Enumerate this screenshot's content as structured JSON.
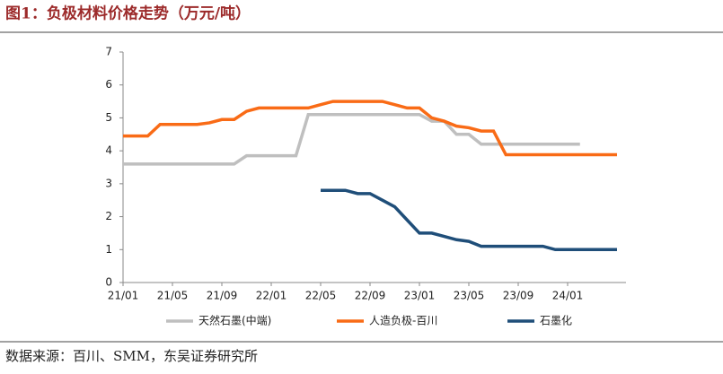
{
  "title": "图1：负极材料价格走势（万元/吨）",
  "source": "数据来源：百川、SMM，东吴证券研究所",
  "chart_data": {
    "type": "line",
    "categories": [
      "21/01",
      null,
      null,
      null,
      "21/05",
      null,
      null,
      null,
      "21/09",
      null,
      null,
      null,
      "22/01",
      null,
      null,
      null,
      "22/05",
      null,
      null,
      null,
      "22/09",
      null,
      null,
      null,
      "23/01",
      null,
      null,
      null,
      "23/05",
      null,
      null,
      null,
      "23/09",
      null,
      null,
      null,
      "24/01",
      null,
      null,
      null,
      null
    ],
    "series": [
      {
        "name": "天然石墨(中端)",
        "color": "#bfbfbf",
        "values": [
          3.6,
          3.6,
          3.6,
          3.6,
          3.6,
          3.6,
          3.6,
          3.6,
          3.6,
          3.6,
          3.85,
          3.85,
          3.85,
          3.85,
          3.85,
          5.1,
          5.1,
          5.1,
          5.1,
          5.1,
          5.1,
          5.1,
          5.1,
          5.1,
          5.1,
          4.9,
          4.9,
          4.5,
          4.5,
          4.2,
          4.2,
          4.2,
          4.2,
          4.2,
          4.2,
          4.2,
          4.2,
          4.2,
          null,
          null,
          null
        ]
      },
      {
        "name": "人造负极-百川",
        "color": "#f96b16",
        "values": [
          4.45,
          4.45,
          4.45,
          4.8,
          4.8,
          4.8,
          4.8,
          4.85,
          4.95,
          4.95,
          5.2,
          5.3,
          5.3,
          5.3,
          5.3,
          5.3,
          5.4,
          5.5,
          5.5,
          5.5,
          5.5,
          5.5,
          5.4,
          5.3,
          5.3,
          5.0,
          4.9,
          4.75,
          4.7,
          4.6,
          4.6,
          3.88,
          3.88,
          3.88,
          3.88,
          3.88,
          3.88,
          3.88,
          3.88,
          3.88,
          3.88
        ]
      },
      {
        "name": "石墨化",
        "color": "#1f4e79",
        "values": [
          null,
          null,
          null,
          null,
          null,
          null,
          null,
          null,
          null,
          null,
          null,
          null,
          null,
          null,
          null,
          null,
          2.8,
          2.8,
          2.8,
          2.7,
          2.7,
          2.5,
          2.3,
          1.9,
          1.5,
          1.5,
          1.4,
          1.3,
          1.25,
          1.1,
          1.1,
          1.1,
          1.1,
          1.1,
          1.1,
          1.0,
          1.0,
          1.0,
          1.0,
          1.0,
          1.0
        ]
      }
    ],
    "ylim": [
      0,
      7
    ],
    "yticks": [
      0,
      1,
      2,
      3,
      4,
      5,
      6,
      7
    ]
  }
}
